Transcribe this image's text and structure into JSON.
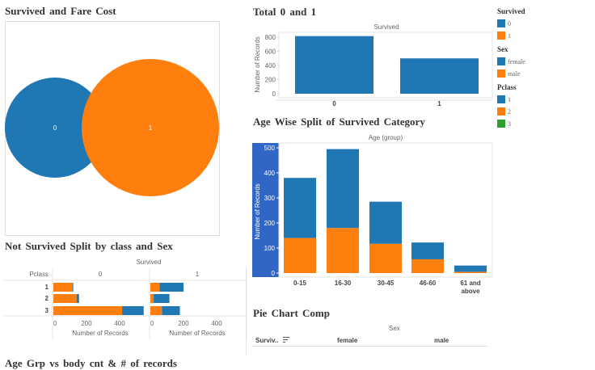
{
  "colors": {
    "blue": "#1f77b4",
    "orange": "#ff7f0e",
    "green": "#2ca02c",
    "axis_band": "#3066c6"
  },
  "titles": {
    "pie": "Survived and Fare Cost",
    "total": "Total 0 and 1",
    "age": "Age Wise Split of Survived Category",
    "split": "Not Survived Split by class and Sex",
    "piecomp": "Pie Chart Comp",
    "agegrp": "Age Grp vs body cnt & # of records"
  },
  "legend": [
    {
      "title": "Survived",
      "items": [
        {
          "label": "0",
          "color": "#1f77b4"
        },
        {
          "label": "1",
          "color": "#ff7f0e"
        }
      ]
    },
    {
      "title": "Sex",
      "items": [
        {
          "label": "female",
          "color": "#1f77b4"
        },
        {
          "label": "male",
          "color": "#ff7f0e"
        }
      ]
    },
    {
      "title": "Pclass",
      "items": [
        {
          "label": "1",
          "color": "#1f77b4"
        },
        {
          "label": "2",
          "color": "#ff7f0e"
        },
        {
          "label": "3",
          "color": "#2ca02c"
        }
      ]
    }
  ],
  "piecomp": {
    "column_header": "Sex",
    "row_header": "Surviv..",
    "columns": [
      "female",
      "male"
    ],
    "sort_icon": "sort-icon"
  },
  "chart_data": [
    {
      "id": "pie",
      "type": "pie",
      "title": "Survived and Fare Cost",
      "marks": [
        {
          "label": "0",
          "color": "#1f77b4",
          "relative_size": 0.73
        },
        {
          "label": "1",
          "color": "#ff7f0e",
          "relative_size": 1
        }
      ]
    },
    {
      "id": "total",
      "type": "bar",
      "title": "Total 0 and 1",
      "column_header": "Survived",
      "ylabel": "Number of Records",
      "categories": [
        "0",
        "1"
      ],
      "values": [
        815,
        500
      ],
      "ylim": [
        0,
        850
      ],
      "yticks": [
        "0",
        "200",
        "400",
        "600",
        "800"
      ]
    },
    {
      "id": "age",
      "type": "bar",
      "stacked": true,
      "title": "Age Wise Split of Survived Category",
      "column_header": "Age (group)",
      "ylabel": "Number of Records",
      "categories": [
        "0-15",
        "16-30",
        "30-45",
        "46-60",
        "61 and above"
      ],
      "series": [
        {
          "color": "#ff7f0e",
          "values": [
            140,
            180,
            117,
            55,
            5
          ]
        },
        {
          "color": "#1f77b4",
          "values": [
            240,
            315,
            168,
            67,
            25
          ]
        }
      ],
      "ylim": [
        0,
        510
      ],
      "yticks": [
        "0",
        "100",
        "200",
        "300",
        "400",
        "500"
      ]
    },
    {
      "id": "split",
      "type": "bar",
      "orientation": "horizontal",
      "stacked": true,
      "title": "Not Survived Split by class and Sex",
      "column_header": "Survived",
      "row_header": "Pclass",
      "xlabel": "Number of Records",
      "panels": [
        "0",
        "1"
      ],
      "rows": [
        "1",
        "2",
        "3"
      ],
      "series": [
        {
          "color": "#ff7f0e",
          "values": [
            [
              115,
              140,
              415
            ],
            [
              55,
              20,
              70
            ]
          ]
        },
        {
          "color": "#1f77b4",
          "values": [
            [
              5,
              15,
              130
            ],
            [
              145,
              95,
              108
            ]
          ]
        }
      ],
      "xlim": [
        0,
        550
      ],
      "xticks": [
        "0",
        "200",
        "400"
      ]
    }
  ]
}
